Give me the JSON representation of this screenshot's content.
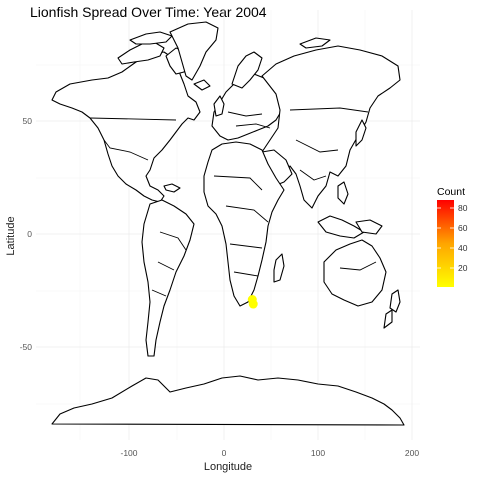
{
  "title": "Lionfish Spread Over Time: Year 2004",
  "colors": {
    "land_fill": "#ffffff",
    "land_stroke": "#000000",
    "grid": "#ebebeb",
    "count_low": "#ffff00",
    "count_high": "#ff0000",
    "observation": "#ffff00"
  },
  "axes": {
    "x": {
      "label": "Longitude",
      "ticks": [
        -100,
        0,
        100,
        200
      ],
      "tick_labels": [
        "-100",
        "0",
        "100",
        "200"
      ]
    },
    "y": {
      "label": "Latitude",
      "ticks": [
        50,
        0,
        -50
      ],
      "tick_labels": [
        "50",
        "0",
        "-50"
      ]
    }
  },
  "legend": {
    "title": "Count",
    "ticks": [
      80,
      60,
      40,
      20
    ],
    "tick_labels": [
      "80",
      "60",
      "40",
      "20"
    ],
    "range": [
      1,
      85
    ]
  },
  "observations": [
    {
      "lon": 30,
      "lat": -29,
      "count": 2
    },
    {
      "lon": 31,
      "lat": -31,
      "count": 1
    }
  ]
}
